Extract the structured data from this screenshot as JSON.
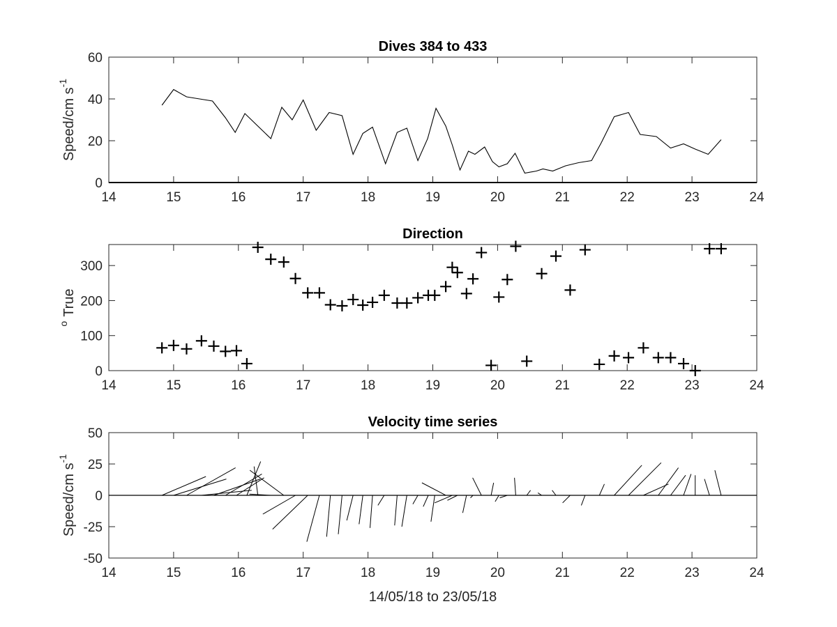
{
  "chart_data": [
    {
      "type": "line",
      "title": "Dives 384 to 433",
      "ylabel": "Speed/cm s",
      "ylabel_superscript": "-1",
      "xlim": [
        14,
        24
      ],
      "ylim": [
        0,
        60
      ],
      "xticks": [
        "14",
        "15",
        "16",
        "17",
        "18",
        "19",
        "20",
        "21",
        "22",
        "23",
        "24"
      ],
      "yticks": [
        "0",
        "20",
        "40",
        "60"
      ],
      "x": [
        14.82,
        15.0,
        15.2,
        15.4,
        15.6,
        15.8,
        15.95,
        16.1,
        16.3,
        16.5,
        16.67,
        16.83,
        17.0,
        17.2,
        17.4,
        17.6,
        17.77,
        17.92,
        18.07,
        18.27,
        18.45,
        18.6,
        18.77,
        18.92,
        19.05,
        19.2,
        19.3,
        19.42,
        19.55,
        19.65,
        19.8,
        19.92,
        20.02,
        20.15,
        20.27,
        20.42,
        20.6,
        20.7,
        20.85,
        21.05,
        21.25,
        21.45,
        21.6,
        21.8,
        22.02,
        22.2,
        22.45,
        22.67,
        22.87,
        23.05,
        23.25,
        23.45
      ],
      "y": [
        37,
        44.5,
        41,
        40,
        39,
        31,
        24,
        33,
        27,
        21,
        36,
        30,
        39.5,
        25,
        33.5,
        32,
        13.5,
        23.5,
        26.5,
        9,
        24,
        26,
        10.5,
        21,
        35.5,
        27,
        18,
        6,
        15,
        13.5,
        17,
        10,
        7.5,
        9,
        14,
        4.5,
        5.5,
        6.5,
        5.5,
        8,
        9.5,
        10.5,
        19,
        31.5,
        33.5,
        23,
        22,
        16.5,
        18.5,
        16,
        13.5,
        20.5
      ]
    },
    {
      "type": "scatter",
      "title": "Direction",
      "ylabel": "True",
      "ylabel_prefix": "o",
      "marker": "+",
      "xlim": [
        14,
        24
      ],
      "ylim": [
        0,
        360
      ],
      "xticks": [
        "14",
        "15",
        "16",
        "17",
        "18",
        "19",
        "20",
        "21",
        "22",
        "23",
        "24"
      ],
      "yticks": [
        "0",
        "100",
        "200",
        "300"
      ],
      "x": [
        14.82,
        15.0,
        15.2,
        15.43,
        15.62,
        15.8,
        15.97,
        16.13,
        16.3,
        16.5,
        16.7,
        16.88,
        17.07,
        17.25,
        17.42,
        17.6,
        17.77,
        17.92,
        18.07,
        18.25,
        18.45,
        18.6,
        18.77,
        18.93,
        19.03,
        19.2,
        19.3,
        19.38,
        19.52,
        19.62,
        19.75,
        19.9,
        20.02,
        20.15,
        20.28,
        20.45,
        20.68,
        20.9,
        21.12,
        21.35,
        21.57,
        21.8,
        22.02,
        22.25,
        22.48,
        22.67,
        22.87,
        23.05,
        23.27,
        23.45
      ],
      "y": [
        65,
        72,
        62,
        85,
        70,
        55,
        57,
        20,
        352,
        318,
        310,
        263,
        222,
        222,
        188,
        185,
        203,
        187,
        195,
        215,
        193,
        193,
        208,
        215,
        215,
        240,
        295,
        280,
        220,
        262,
        337,
        15,
        210,
        260,
        355,
        27,
        277,
        327,
        230,
        345,
        18,
        42,
        37,
        65,
        37,
        37,
        20,
        0,
        348,
        348
      ]
    },
    {
      "type": "quiver",
      "title": "Velocity time series",
      "ylabel": "Speed/cm s",
      "ylabel_superscript": "-1",
      "xlabel": "14/05/18 to 23/05/18",
      "xlim": [
        14,
        24
      ],
      "ylim": [
        -50,
        50
      ],
      "xticks": [
        "14",
        "15",
        "16",
        "17",
        "18",
        "19",
        "20",
        "21",
        "22",
        "23",
        "24"
      ],
      "yticks": [
        "-50",
        "-25",
        "0",
        "25",
        "50"
      ],
      "x": [
        14.82,
        15.0,
        15.2,
        15.43,
        15.62,
        15.8,
        15.97,
        16.13,
        16.3,
        16.5,
        16.7,
        16.88,
        17.07,
        17.25,
        17.42,
        17.6,
        17.77,
        17.92,
        18.07,
        18.25,
        18.45,
        18.6,
        18.77,
        18.93,
        19.03,
        19.2,
        19.3,
        19.38,
        19.52,
        19.62,
        19.75,
        19.9,
        20.02,
        20.15,
        20.28,
        20.45,
        20.68,
        20.9,
        21.12,
        21.35,
        21.57,
        21.8,
        22.02,
        22.25,
        22.48,
        22.67,
        22.87,
        23.05,
        23.27,
        23.45
      ],
      "u": [
        35,
        42,
        39,
        40,
        37,
        29,
        22,
        11,
        -3,
        -17,
        -27,
        -26,
        -28,
        -10,
        -3,
        -3,
        -5,
        -3,
        -2,
        -5,
        -2,
        -4,
        -4,
        -4,
        -3,
        -19,
        -14,
        -8,
        -3,
        -2,
        -7,
        2,
        -3,
        -6,
        -1,
        3,
        -3,
        -3,
        -6,
        -3,
        4,
        22,
        26,
        20,
        16,
        12,
        6,
        0,
        -4,
        -5
      ],
      "v": [
        15,
        13,
        22,
        4,
        13,
        17,
        14,
        27,
        23,
        1,
        20,
        -15,
        -27,
        -37,
        -33,
        -31,
        -20,
        -23,
        -26,
        -8,
        -24,
        -25,
        -7,
        -9,
        -21,
        10,
        -6,
        -4,
        -14,
        -2,
        14,
        10,
        -5,
        -2,
        14,
        4,
        2,
        4,
        -6,
        -8,
        9,
        24,
        26,
        9,
        22,
        16,
        17,
        16,
        13,
        20
      ]
    }
  ]
}
